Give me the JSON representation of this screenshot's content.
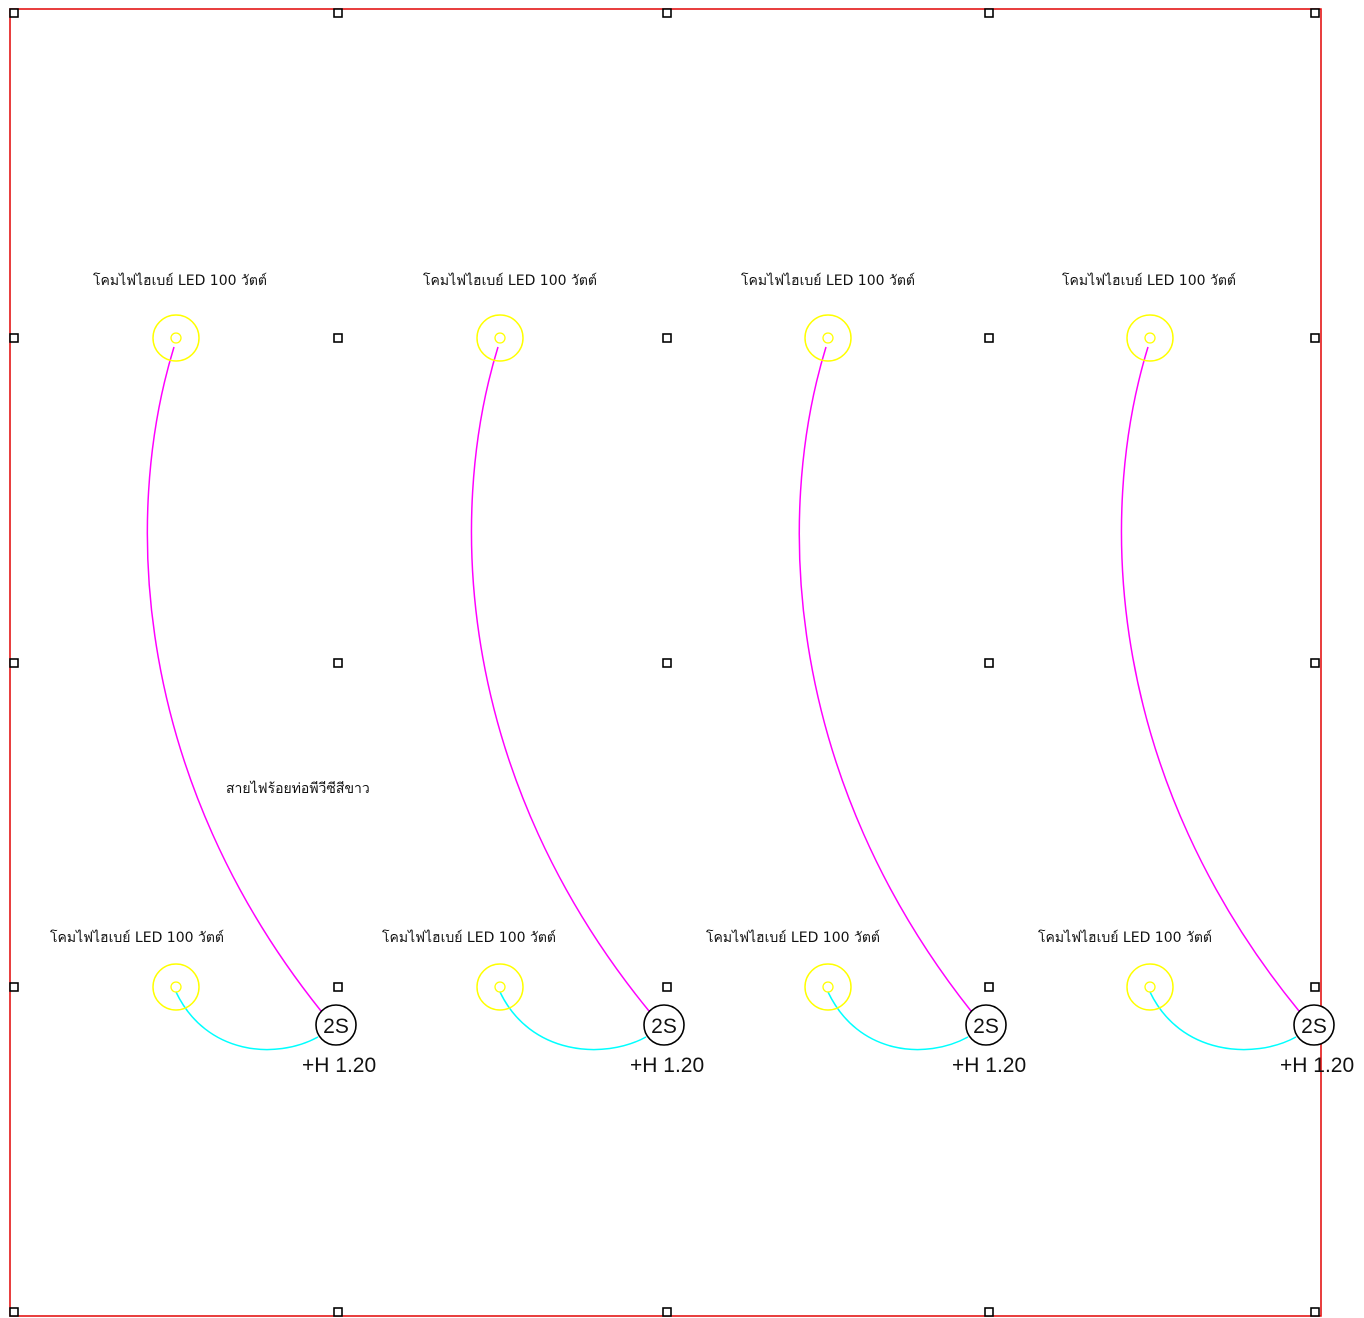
{
  "drawing": {
    "border_color": "#e00000",
    "column_marker_color": "#000000",
    "lamp_color": "#ffff00",
    "wire_to_switch_color": "#ff00ff",
    "wire_lamp_to_switch_color": "#00ffff",
    "switch_outline_color": "#000000"
  },
  "labels": {
    "lamp": "โคมไฟไฮเบย์ LED 100 วัตต์",
    "wire_note": "สายไฟร้อยท่อพีวีซีสีขาว",
    "switch": "2S",
    "switch_height": "+H 1.20"
  },
  "fixtures": {
    "rows": [
      "upper",
      "lower"
    ],
    "columns": 4,
    "lamp_count": 8,
    "switch_count": 4,
    "icons": {
      "lamp": "high-bay-lamp-icon",
      "switch": "switch-2s-icon",
      "column": "column-marker-icon"
    }
  }
}
